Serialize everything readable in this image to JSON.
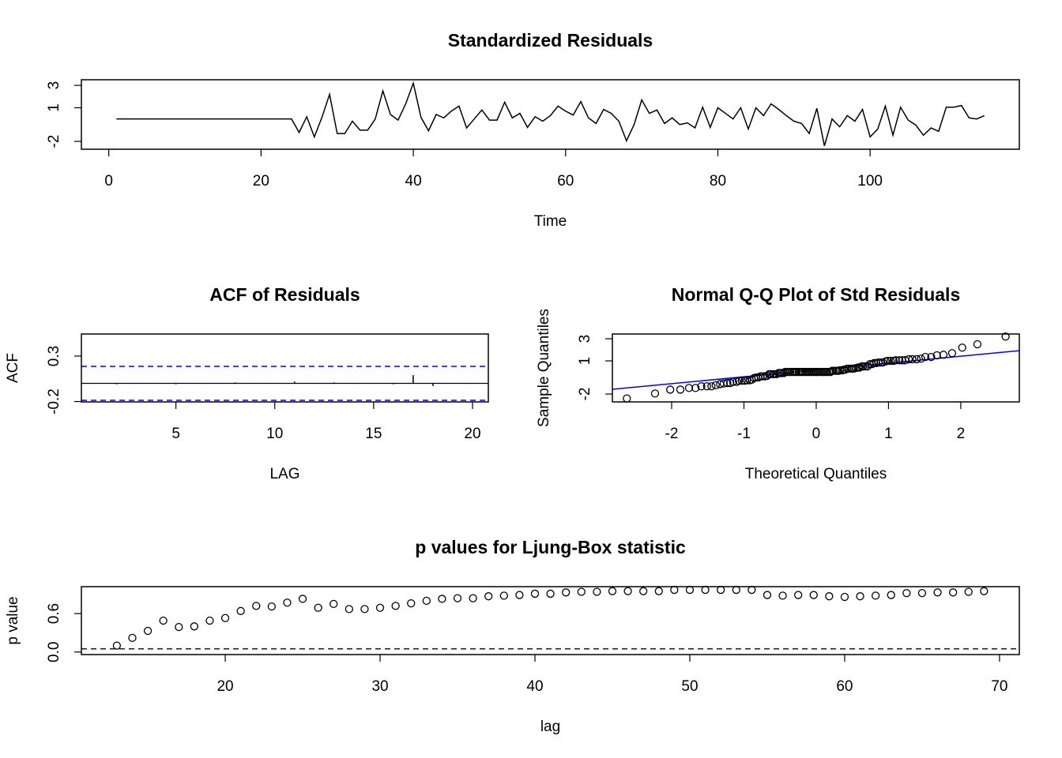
{
  "chart_data": [
    {
      "type": "line",
      "title": "Standardized Residuals",
      "x_label": "Time",
      "color": "#000000",
      "x": [
        1,
        2,
        3,
        4,
        5,
        6,
        7,
        8,
        9,
        10,
        11,
        12,
        13,
        14,
        15,
        16,
        17,
        18,
        19,
        20,
        21,
        22,
        23,
        24,
        25,
        26,
        27,
        28,
        29,
        30,
        31,
        32,
        33,
        34,
        35,
        36,
        37,
        38,
        39,
        40,
        41,
        42,
        43,
        44,
        45,
        46,
        47,
        48,
        49,
        50,
        51,
        52,
        53,
        54,
        55,
        56,
        57,
        58,
        59,
        60,
        61,
        62,
        63,
        64,
        65,
        66,
        67,
        68,
        69,
        70,
        71,
        72,
        73,
        74,
        75,
        76,
        77,
        78,
        79,
        80,
        81,
        82,
        83,
        84,
        85,
        86,
        87,
        88,
        89,
        90,
        91,
        92,
        93,
        94,
        95,
        96,
        97,
        98,
        99,
        100,
        101,
        102,
        103,
        104,
        105,
        106,
        107,
        108,
        109,
        110,
        111,
        112,
        113,
        114,
        115
      ],
      "values": [
        0,
        0,
        0,
        0,
        0,
        0,
        0,
        0,
        0,
        0,
        0,
        0,
        0,
        0,
        0,
        0,
        0,
        0,
        0,
        0,
        0,
        0,
        0,
        0,
        -1.2,
        0.2,
        -1.6,
        0.15,
        2.2,
        -1.3,
        -1.3,
        -0.2,
        -1,
        -1,
        0,
        2.5,
        0.4,
        -0.1,
        1.35,
        3.2,
        0.15,
        -1.05,
        0.4,
        0.1,
        0.7,
        1.15,
        -0.8,
        0,
        0.8,
        -0.1,
        -0.1,
        1.5,
        0.1,
        0.5,
        -0.75,
        0.2,
        -0.2,
        0.3,
        1.15,
        0.7,
        0.35,
        1.55,
        0.1,
        -0.4,
        0.85,
        0.5,
        -0.2,
        -1.95,
        -0.5,
        1.7,
        0.5,
        0.8,
        -0.4,
        0.1,
        -0.5,
        -0.35,
        -0.8,
        1.05,
        -0.75,
        1,
        0.5,
        0,
        1,
        -0.9,
        1,
        0.3,
        1.35,
        0.85,
        0.3,
        -0.2,
        -0.4,
        -1.3,
        0.95,
        -2.4,
        0,
        -0.7,
        0.3,
        -0.2,
        0.85,
        -1.6,
        -0.9,
        1.15,
        -1.45,
        1.05,
        -0.1,
        -0.55,
        -1.45,
        -0.8,
        -1.1,
        1.05,
        1.05,
        1.2,
        0.1,
        0,
        0.3
      ],
      "xlim": [
        -3.6,
        119.6
      ],
      "xticks": [
        0,
        20,
        40,
        60,
        80,
        100
      ],
      "ylim": [
        -2.7,
        3.5
      ],
      "yticks": [
        -2,
        1,
        3
      ]
    },
    {
      "type": "stem",
      "title": "ACF of Residuals",
      "x_label": "LAG",
      "y_label": "ACF",
      "color": "#000000",
      "x": [
        1,
        2,
        3,
        4,
        5,
        6,
        7,
        8,
        9,
        10,
        11,
        12,
        13,
        14,
        15,
        16,
        17,
        18,
        19,
        20
      ],
      "values": [
        0,
        -0.01,
        0,
        0,
        -0.01,
        0,
        0,
        0.01,
        0,
        0,
        0.02,
        0,
        0.01,
        0,
        0,
        -0.01,
        0.09,
        -0.03,
        0,
        0
      ],
      "hlines": [
        -0.187,
        0.187
      ],
      "hline_color": "#0000ff",
      "xlim": [
        0.22,
        20.8
      ],
      "xticks": [
        5,
        10,
        15,
        20
      ],
      "ylim": [
        -0.204,
        0.543
      ],
      "yticks": [
        -0.2,
        0.3
      ]
    },
    {
      "type": "scatter",
      "title": "Normal Q-Q Plot of Std Residuals",
      "x_label": "Theoretical Quantiles",
      "y_label": "Sample Quantiles",
      "color": "#000000",
      "x": [
        -2.62,
        -2.23,
        -2.02,
        -1.88,
        -1.76,
        -1.67,
        -1.59,
        -1.51,
        -1.45,
        -1.39,
        -1.33,
        -1.28,
        -1.23,
        -1.19,
        -1.15,
        -1.1,
        -1.07,
        -1.03,
        -0.99,
        -0.96,
        -0.92,
        -0.89,
        -0.86,
        -0.83,
        -0.8,
        -0.77,
        -0.74,
        -0.71,
        -0.68,
        -0.65,
        -0.63,
        -0.6,
        -0.58,
        -0.55,
        -0.52,
        -0.5,
        -0.48,
        -0.45,
        -0.43,
        -0.4,
        -0.38,
        -0.36,
        -0.33,
        -0.31,
        -0.29,
        -0.27,
        -0.24,
        -0.22,
        -0.2,
        -0.18,
        -0.15,
        -0.13,
        -0.11,
        -0.09,
        -0.07,
        -0.04,
        -0.02,
        0,
        0.02,
        0.04,
        0.07,
        0.09,
        0.11,
        0.13,
        0.15,
        0.18,
        0.2,
        0.22,
        0.24,
        0.27,
        0.29,
        0.31,
        0.33,
        0.36,
        0.38,
        0.4,
        0.43,
        0.45,
        0.48,
        0.5,
        0.52,
        0.55,
        0.58,
        0.6,
        0.63,
        0.65,
        0.68,
        0.71,
        0.74,
        0.77,
        0.8,
        0.83,
        0.86,
        0.89,
        0.92,
        0.96,
        0.99,
        1.03,
        1.07,
        1.1,
        1.15,
        1.19,
        1.23,
        1.28,
        1.33,
        1.39,
        1.45,
        1.51,
        1.59,
        1.67,
        1.76,
        1.88,
        2.02,
        2.23,
        2.62
      ],
      "values": [
        -2.4,
        -1.95,
        -1.6,
        -1.6,
        -1.45,
        -1.45,
        -1.3,
        -1.3,
        -1.3,
        -1.2,
        -1.1,
        -1.05,
        -1,
        -1,
        -0.9,
        -0.9,
        -0.8,
        -0.8,
        -0.8,
        -0.75,
        -0.75,
        -0.7,
        -0.55,
        -0.5,
        -0.5,
        -0.4,
        -0.4,
        -0.4,
        -0.35,
        -0.2,
        -0.2,
        -0.2,
        -0.2,
        -0.2,
        -0.1,
        -0.1,
        -0.1,
        -0.1,
        0,
        0,
        0,
        0,
        0,
        0,
        0,
        0,
        0,
        0,
        0,
        0,
        0,
        0,
        0,
        0,
        0,
        0,
        0,
        0,
        0,
        0,
        0,
        0,
        0,
        0,
        0,
        0,
        0,
        0.1,
        0.1,
        0.1,
        0.1,
        0.1,
        0.15,
        0.15,
        0.2,
        0.2,
        0.3,
        0.3,
        0.3,
        0.3,
        0.3,
        0.35,
        0.4,
        0.4,
        0.5,
        0.5,
        0.5,
        0.5,
        0.7,
        0.7,
        0.8,
        0.8,
        0.85,
        0.85,
        0.85,
        0.95,
        1,
        1,
        1,
        1.05,
        1.05,
        1.05,
        1.05,
        1.15,
        1.15,
        1.15,
        1.2,
        1.35,
        1.35,
        1.5,
        1.55,
        1.7,
        2.2,
        2.5,
        3.2
      ],
      "reference_line": {
        "intercept": 0.18,
        "slope": 0.62,
        "color": "#0000ff"
      },
      "xlim": [
        -2.82,
        2.81
      ],
      "xticks": [
        -2,
        -1,
        0,
        1,
        2
      ],
      "ylim": [
        -2.71,
        3.43
      ],
      "yticks": [
        -2,
        1,
        3
      ]
    },
    {
      "type": "scatter",
      "title": "p values for Ljung-Box statistic",
      "x_label": "lag",
      "y_label": "p value",
      "color": "#000000",
      "x": [
        13,
        14,
        15,
        16,
        17,
        18,
        19,
        20,
        21,
        22,
        23,
        24,
        25,
        26,
        27,
        28,
        29,
        30,
        31,
        32,
        33,
        34,
        35,
        36,
        37,
        38,
        39,
        40,
        41,
        42,
        43,
        44,
        45,
        46,
        47,
        48,
        49,
        50,
        51,
        52,
        53,
        54,
        55,
        56,
        57,
        58,
        59,
        60,
        61,
        62,
        63,
        64,
        65,
        66,
        67,
        68,
        69
      ],
      "values": [
        0.1,
        0.22,
        0.33,
        0.49,
        0.39,
        0.4,
        0.49,
        0.53,
        0.64,
        0.72,
        0.71,
        0.77,
        0.83,
        0.69,
        0.75,
        0.67,
        0.67,
        0.69,
        0.72,
        0.76,
        0.8,
        0.83,
        0.84,
        0.84,
        0.87,
        0.88,
        0.89,
        0.91,
        0.91,
        0.93,
        0.94,
        0.94,
        0.95,
        0.95,
        0.95,
        0.95,
        0.97,
        0.97,
        0.97,
        0.97,
        0.97,
        0.97,
        0.89,
        0.88,
        0.89,
        0.89,
        0.87,
        0.86,
        0.87,
        0.88,
        0.89,
        0.92,
        0.92,
        0.93,
        0.93,
        0.94,
        0.95
      ],
      "hlines": [
        0.05
      ],
      "hline_color": "#0000ff",
      "xlim": [
        10.71,
        71.28
      ],
      "xticks": [
        20,
        30,
        40,
        50,
        60,
        70
      ],
      "ylim": [
        -0.04,
        1.02
      ],
      "yticks": [
        {
          "value": 0,
          "label": "0.0"
        },
        {
          "value": 0.6,
          "label": "0.6"
        }
      ]
    }
  ]
}
